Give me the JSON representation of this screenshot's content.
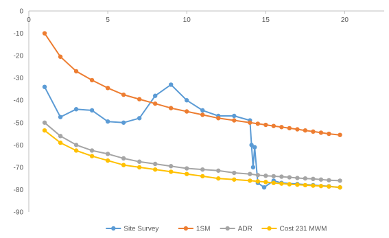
{
  "chart_data": {
    "type": "scatter",
    "title": "",
    "xlabel": "",
    "ylabel": "",
    "xlim": [
      0,
      22.5
    ],
    "ylim": [
      -90,
      0
    ],
    "x_ticks": [
      "0",
      "5",
      "10",
      "15",
      "20"
    ],
    "y_ticks": [
      "0",
      "-10",
      "-20",
      "-30",
      "-40",
      "-50",
      "-60",
      "-70",
      "-80",
      "-90"
    ],
    "x_axis_position": "top",
    "grid": false,
    "legend_position": "bottom",
    "series": [
      {
        "name": "Site Survey",
        "color": "#5B9BD5",
        "x": [
          1,
          2,
          3,
          4,
          5,
          6,
          7,
          8,
          9,
          10,
          11,
          12,
          13,
          14,
          14.1,
          14.2,
          14.3,
          14.5,
          14.9,
          15.5,
          16,
          17,
          18,
          19,
          19.7
        ],
        "y": [
          -34,
          -47.5,
          -44,
          -44.5,
          -49.5,
          -50,
          -48,
          -38,
          -33,
          -40,
          -44.5,
          -47,
          -47,
          -49,
          -60,
          -70,
          -61,
          -77,
          -79,
          -76,
          -77,
          -77.5,
          -78,
          -78.5,
          -79
        ]
      },
      {
        "name": "1SM",
        "color": "#ED7D31",
        "x": [
          1,
          2,
          3,
          4,
          5,
          6,
          7,
          8,
          9,
          10,
          11,
          12,
          13,
          14,
          14.5,
          15,
          15.5,
          16,
          16.5,
          17,
          17.5,
          18,
          18.5,
          19,
          19.7
        ],
        "y": [
          -10,
          -20.5,
          -27,
          -31,
          -34.5,
          -37.5,
          -39.5,
          -41.5,
          -43.5,
          -45,
          -46.5,
          -48,
          -49,
          -50,
          -50.5,
          -51,
          -51.5,
          -52,
          -52.5,
          -53,
          -53.5,
          -54,
          -54.5,
          -55,
          -55.5
        ]
      },
      {
        "name": "ADR",
        "color": "#A5A5A5",
        "x": [
          1,
          2,
          3,
          4,
          5,
          6,
          7,
          8,
          9,
          10,
          11,
          12,
          13,
          14,
          14.5,
          15,
          15.5,
          16,
          16.5,
          17,
          17.5,
          18,
          18.5,
          19,
          19.7
        ],
        "y": [
          -50,
          -56,
          -60,
          -62.5,
          -64,
          -66,
          -67.5,
          -68.5,
          -69.5,
          -70.5,
          -71,
          -71.5,
          -72.5,
          -73,
          -73.5,
          -73.8,
          -74,
          -74.2,
          -74.5,
          -74.8,
          -75,
          -75.2,
          -75.5,
          -75.8,
          -76
        ]
      },
      {
        "name": "Cost 231 MWM",
        "color": "#FFC000",
        "x": [
          1,
          2,
          3,
          4,
          5,
          6,
          7,
          8,
          9,
          10,
          11,
          12,
          13,
          14,
          14.5,
          15,
          15.5,
          16,
          16.5,
          17,
          17.5,
          18,
          18.5,
          19,
          19.7
        ],
        "y": [
          -53.5,
          -59,
          -62.5,
          -65,
          -67,
          -69,
          -70,
          -71,
          -72,
          -73,
          -74,
          -75,
          -75.5,
          -76,
          -76.3,
          -76.6,
          -77,
          -77.3,
          -77.6,
          -77.8,
          -78,
          -78.2,
          -78.4,
          -78.6,
          -79
        ]
      }
    ]
  }
}
